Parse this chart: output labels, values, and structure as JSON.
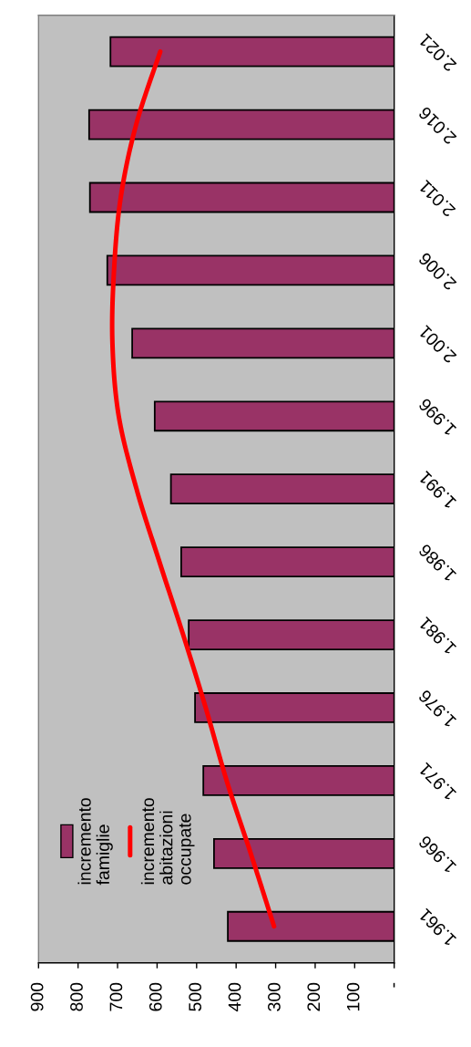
{
  "chart_data": {
    "type": "bar",
    "orientation": "horizontal",
    "categories": [
      "2.021",
      "2.016",
      "2.011",
      "2.006",
      "2.001",
      "1.996",
      "1.991",
      "1.986",
      "1.981",
      "1.976",
      "1.971",
      "1.966",
      "1.961"
    ],
    "series": [
      {
        "name": "incremento famiglie",
        "color": "#993366",
        "values": [
          718,
          772,
          770,
          726,
          663,
          606,
          565,
          539,
          520,
          504,
          483,
          456,
          421
        ]
      },
      {
        "name": "incremento abitazioni occupate",
        "type": "line",
        "color": "#ff0000",
        "values": [
          592,
          653,
          692,
          709,
          713,
          697,
          652,
          594,
          534,
          477,
          424,
          363,
          304
        ]
      }
    ],
    "xlim": [
      900,
      0
    ],
    "xticks": [
      900,
      800,
      700,
      600,
      500,
      400,
      300,
      200,
      100,
      {
        "value": 0,
        "label": "-"
      }
    ],
    "legend": "bottom left"
  }
}
